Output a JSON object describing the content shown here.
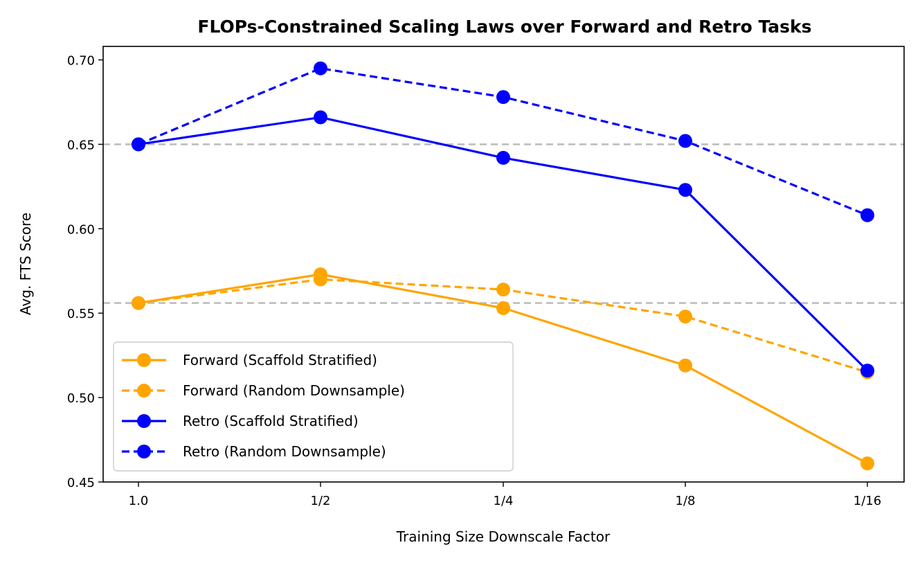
{
  "chart_data": {
    "type": "line",
    "title": "FLOPs-Constrained Scaling Laws over Forward and Retro Tasks",
    "xlabel": "Training Size Downscale Factor",
    "ylabel": "Avg. FTS Score",
    "categories": [
      "1.0",
      "1/2",
      "1/4",
      "1/8",
      "1/16"
    ],
    "ylim": [
      0.45,
      0.708
    ],
    "yticks": [
      "0.45",
      "0.50",
      "0.55",
      "0.60",
      "0.65",
      "0.70"
    ],
    "ytick_values": [
      0.45,
      0.5,
      0.55,
      0.6,
      0.65,
      0.7
    ],
    "reference_lines": [
      0.65,
      0.556
    ],
    "reference_color": "#bdbdbd",
    "grid": false,
    "legend_position": "lower-left",
    "series": [
      {
        "name": "Forward (Scaffold Stratified)",
        "color": "#FFA500",
        "dashed": false,
        "values": [
          0.556,
          0.573,
          0.553,
          0.519,
          0.461
        ]
      },
      {
        "name": "Forward (Random Downsample)",
        "color": "#FFA500",
        "dashed": true,
        "values": [
          0.556,
          0.57,
          0.564,
          0.548,
          0.515
        ]
      },
      {
        "name": "Retro (Scaffold Stratified)",
        "color": "#0000FF",
        "dashed": false,
        "values": [
          0.65,
          0.666,
          0.642,
          0.623,
          0.516
        ]
      },
      {
        "name": "Retro (Random Downsample)",
        "color": "#0000FF",
        "dashed": true,
        "values": [
          0.65,
          0.695,
          0.678,
          0.652,
          0.608
        ]
      }
    ]
  }
}
